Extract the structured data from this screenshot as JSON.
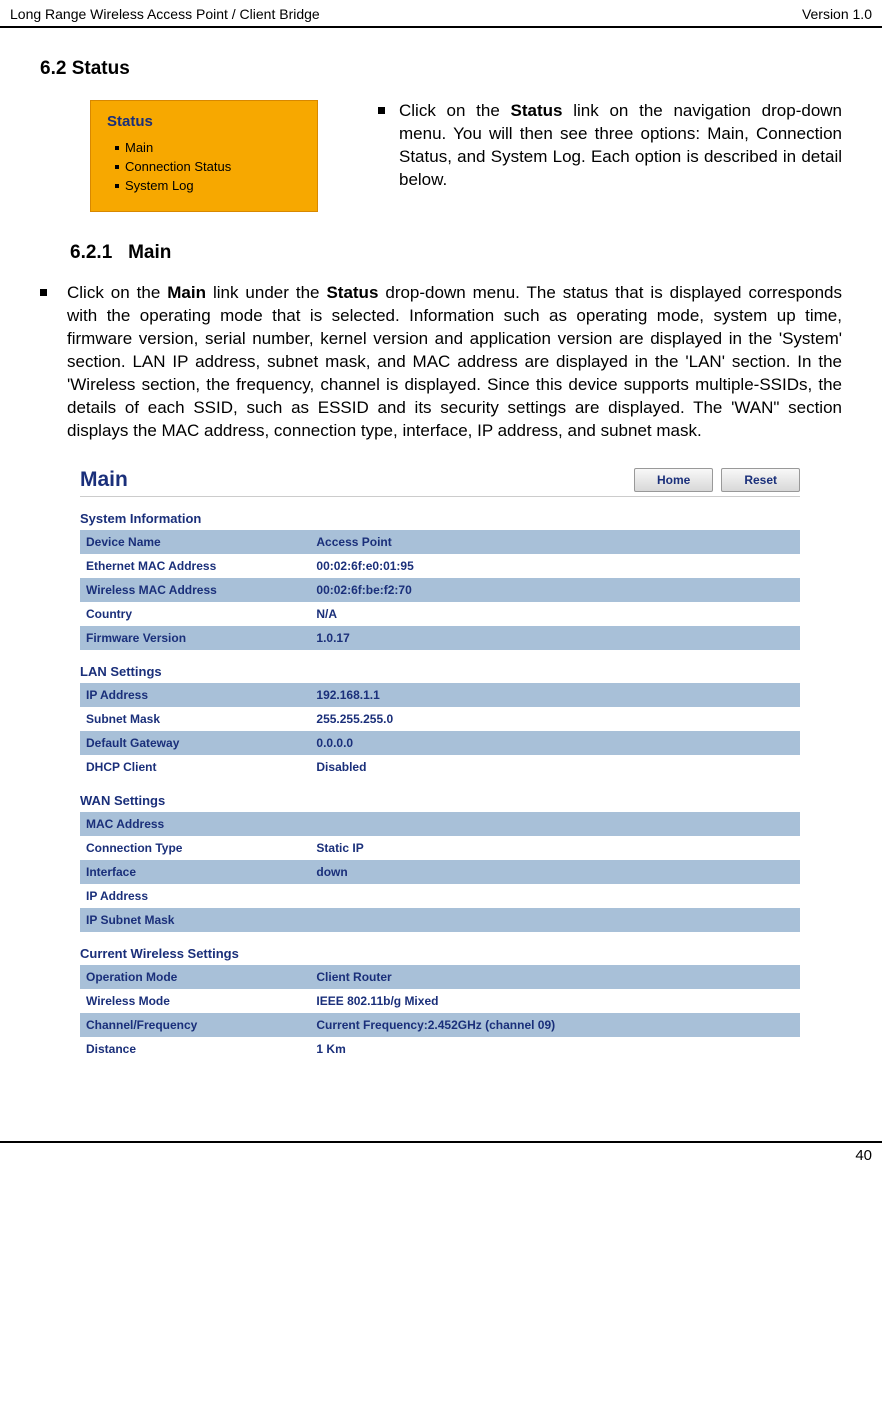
{
  "header": {
    "left": "Long Range Wireless Access Point / Client Bridge",
    "right": "Version 1.0"
  },
  "section": {
    "number": "6.2",
    "title": "Status"
  },
  "status_menu": {
    "title": "Status",
    "items": [
      "Main",
      "Connection Status",
      "System Log"
    ]
  },
  "status_desc_prefix": "Click on the ",
  "status_desc_bold": "Status",
  "status_desc_suffix": " link on the navigation drop-down menu. You will then see three options: Main, Connection Status, and System Log. Each option is described in detail below.",
  "subsection": {
    "number": "6.2.1",
    "title": "Main"
  },
  "main_desc_p1": "Click on the ",
  "main_desc_b1": "Main",
  "main_desc_p2": " link under the ",
  "main_desc_b2": "Status",
  "main_desc_p3": " drop-down menu. The status that is displayed corresponds with the operating mode that is selected. Information such as operating mode, system up time, firmware version, serial number, kernel version and application version are displayed in the 'System' section. LAN IP address, subnet mask, and MAC address are displayed in the 'LAN' section. In the 'Wireless section, the frequency, channel is displayed. Since this device supports multiple-SSIDs, the details of each SSID, such as ESSID and its security settings are displayed. The 'WAN\" section displays the MAC address, connection type, interface, IP address, and subnet mask.",
  "screenshot": {
    "title": "Main",
    "buttons": {
      "home": "Home",
      "reset": "Reset"
    },
    "sections": [
      {
        "label": "System Information",
        "rows": [
          [
            "Device Name",
            "Access Point"
          ],
          [
            "Ethernet MAC Address",
            "00:02:6f:e0:01:95"
          ],
          [
            "Wireless MAC Address",
            "00:02:6f:be:f2:70"
          ],
          [
            "Country",
            "N/A"
          ],
          [
            "Firmware Version",
            "1.0.17"
          ]
        ]
      },
      {
        "label": "LAN Settings",
        "rows": [
          [
            "IP Address",
            "192.168.1.1"
          ],
          [
            "Subnet Mask",
            "255.255.255.0"
          ],
          [
            "Default Gateway",
            "0.0.0.0"
          ],
          [
            "DHCP Client",
            "Disabled"
          ]
        ]
      },
      {
        "label": "WAN Settings",
        "rows": [
          [
            "MAC Address",
            ""
          ],
          [
            "Connection Type",
            "Static IP"
          ],
          [
            "Interface",
            "down"
          ],
          [
            "IP Address",
            ""
          ],
          [
            "IP Subnet Mask",
            ""
          ]
        ]
      },
      {
        "label": "Current Wireless Settings",
        "rows": [
          [
            "Operation Mode",
            "Client Router"
          ],
          [
            "Wireless Mode",
            "IEEE 802.11b/g Mixed"
          ],
          [
            "Channel/Frequency",
            "Current Frequency:2.452GHz (channel 09)"
          ],
          [
            "Distance",
            "1 Km"
          ]
        ]
      }
    ]
  },
  "footer": {
    "page": "40"
  },
  "colors": {
    "menu_bg": "#f7a800",
    "link_text": "#1a2f7a",
    "table_row_odd": "#a8c0d8"
  }
}
